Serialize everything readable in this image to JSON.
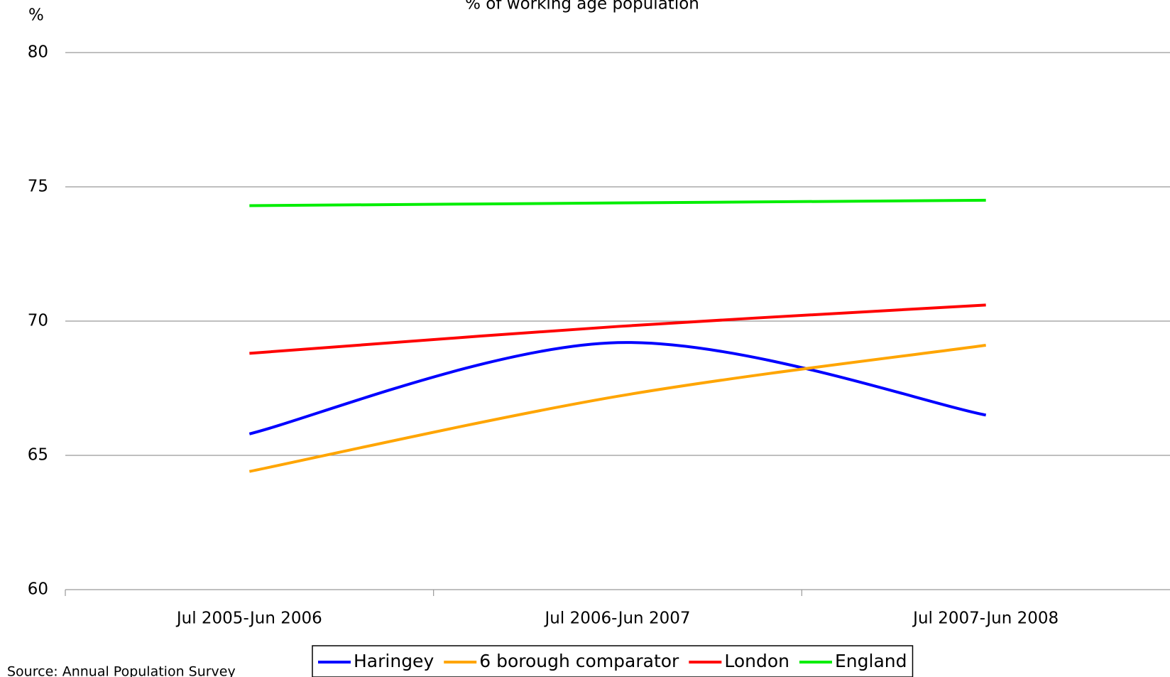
{
  "chart_data": {
    "type": "line",
    "title": "% of working age population",
    "y_axis_label": "%",
    "source": "Source: Annual Population Survey",
    "categories": [
      "Jul 2005-Jun 2006",
      "Jul 2006-Jun 2007",
      "Jul 2007-Jun 2008"
    ],
    "series": [
      {
        "name": "Haringey",
        "color": "#0000ff",
        "values": [
          65.8,
          69.2,
          66.5
        ]
      },
      {
        "name": "6 borough comparator",
        "color": "#ffa500",
        "values": [
          64.4,
          67.2,
          69.1
        ]
      },
      {
        "name": "London",
        "color": "#ff0000",
        "values": [
          68.8,
          69.8,
          70.6
        ]
      },
      {
        "name": "England",
        "color": "#00ee00",
        "values": [
          74.3,
          74.4,
          74.5
        ]
      }
    ],
    "ylim": [
      60,
      80
    ],
    "yticks": [
      60,
      65,
      70,
      75,
      80
    ],
    "grid": true,
    "smooth": true,
    "legend": "bottom"
  }
}
